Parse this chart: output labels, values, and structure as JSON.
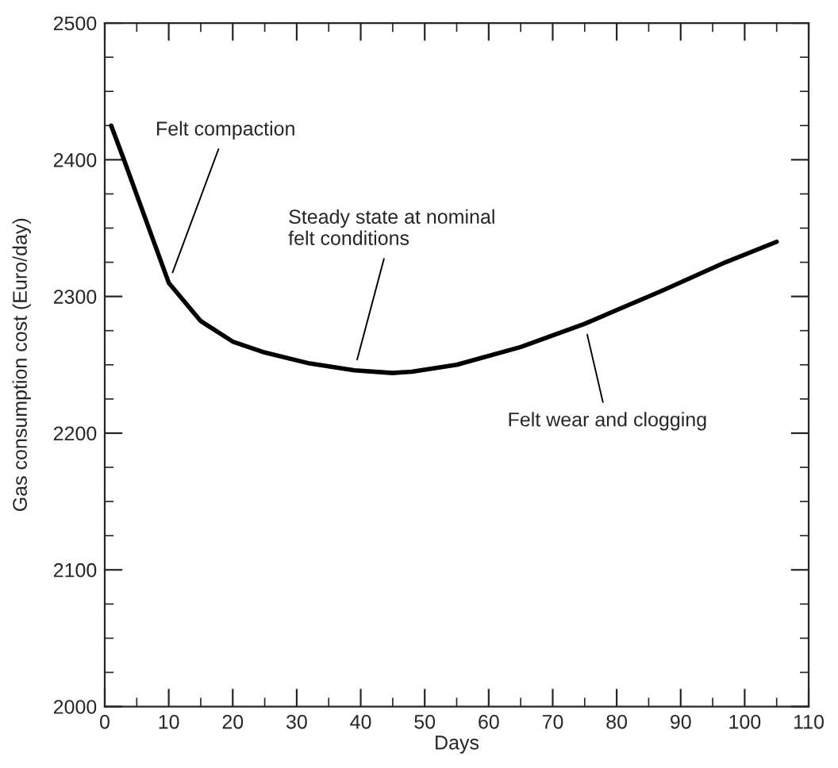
{
  "chart_data": {
    "type": "line",
    "xlabel": "Days",
    "ylabel": "Gas consumption cost (Euro/day)",
    "x": [
      1,
      3,
      10,
      15,
      20,
      25,
      32,
      39,
      45,
      48,
      55,
      65,
      75,
      87,
      97,
      105
    ],
    "series": [
      {
        "color": "#000000",
        "values": [
          2425,
          2400,
          2310,
          2282,
          2267,
          2259,
          2251,
          2246,
          2244,
          2245,
          2250,
          2263,
          2280,
          2304,
          2325,
          2340
        ]
      }
    ],
    "xlim": [
      0,
      110
    ],
    "xticks": [
      0,
      10,
      20,
      30,
      40,
      50,
      60,
      70,
      80,
      90,
      100,
      110
    ],
    "ylim": [
      2000,
      2500
    ],
    "yticks": [
      2000,
      2100,
      2200,
      2300,
      2400,
      2500
    ],
    "grid": false,
    "legend": false,
    "marker": "none",
    "line_style": "solid",
    "annotations": [
      {
        "text": "Felt compaction",
        "x": 10,
        "y": 2310
      },
      {
        "text": "Steady state at nominal\nfelt conditions",
        "x": 39,
        "y": 2246
      },
      {
        "text": "Felt wear and clogging",
        "x": 75,
        "y": 2280
      }
    ]
  }
}
